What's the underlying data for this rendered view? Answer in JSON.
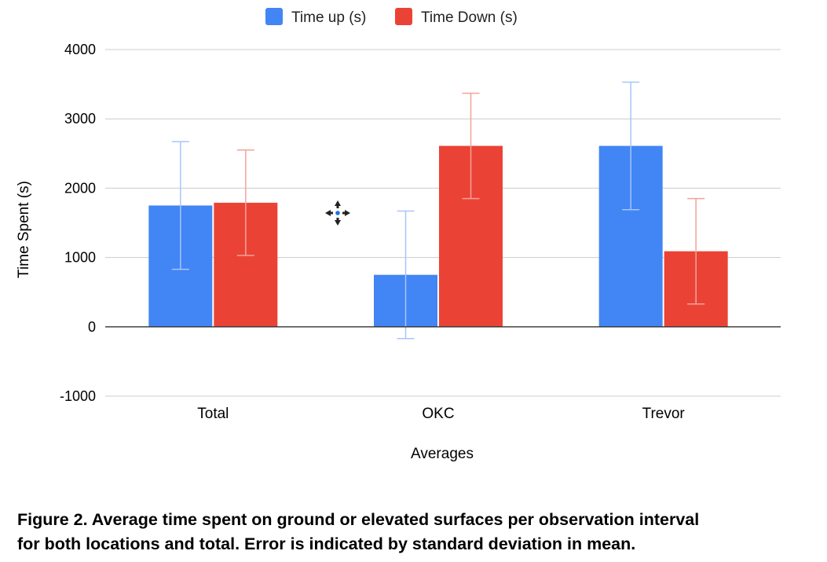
{
  "chart_data": {
    "type": "bar",
    "categories": [
      "Total",
      "OKC",
      "Trevor"
    ],
    "series": [
      {
        "name": "Time up (s)",
        "color": "#4285f4",
        "error_color": "#a7c5f9",
        "values": [
          1750,
          750,
          2610
        ],
        "errors": [
          920,
          920,
          920
        ]
      },
      {
        "name": "Time Down (s)",
        "color": "#ea4335",
        "error_color": "#f4a29a",
        "values": [
          1790,
          2610,
          1090
        ],
        "errors": [
          760,
          760,
          760
        ]
      }
    ],
    "xlabel": "Averages",
    "ylabel": "Time Spent (s)",
    "ylim": [
      -1000,
      4000
    ],
    "yticks": [
      4000,
      3000,
      2000,
      1000,
      0,
      -1000
    ],
    "grid": true,
    "legend_position": "top"
  },
  "move_cursor_icon": "move-cursor-icon",
  "caption": {
    "line1": "Figure 2.  Average time spent on ground or elevated surfaces per observation interval",
    "line2": "for both locations and total. Error is indicated by standard deviation in mean."
  }
}
